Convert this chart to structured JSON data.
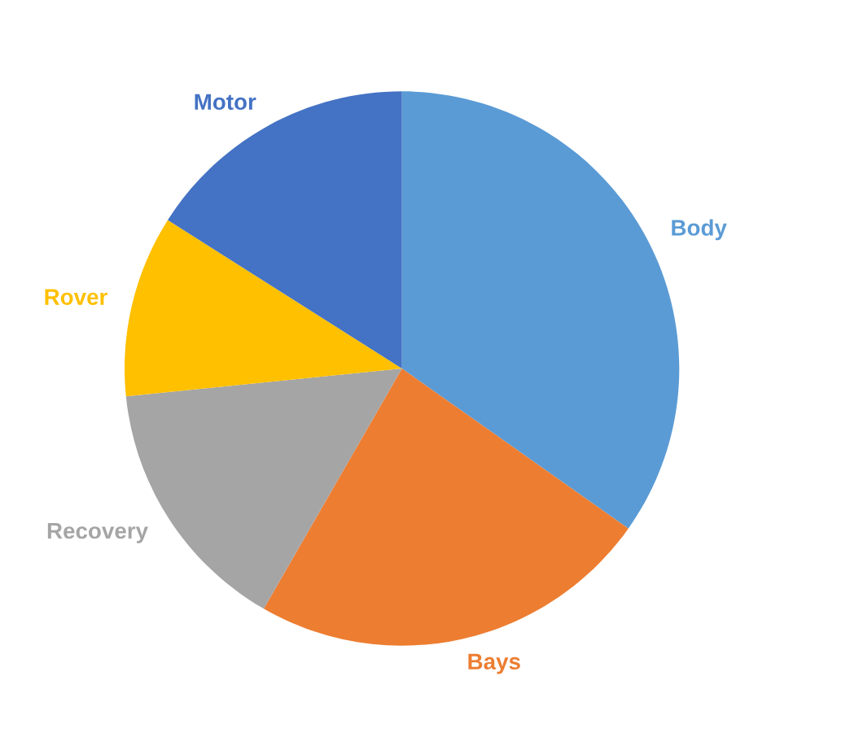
{
  "chart_data": {
    "type": "pie",
    "categories": [
      "Body",
      "Bays",
      "Recovery",
      "Rover",
      "Motor"
    ],
    "values": [
      34.8,
      23.5,
      15.1,
      10.6,
      16.0
    ],
    "colors": [
      "#5b9bd5",
      "#ed7d31",
      "#a5a5a5",
      "#ffc000",
      "#4472c4"
    ],
    "legend": false
  }
}
